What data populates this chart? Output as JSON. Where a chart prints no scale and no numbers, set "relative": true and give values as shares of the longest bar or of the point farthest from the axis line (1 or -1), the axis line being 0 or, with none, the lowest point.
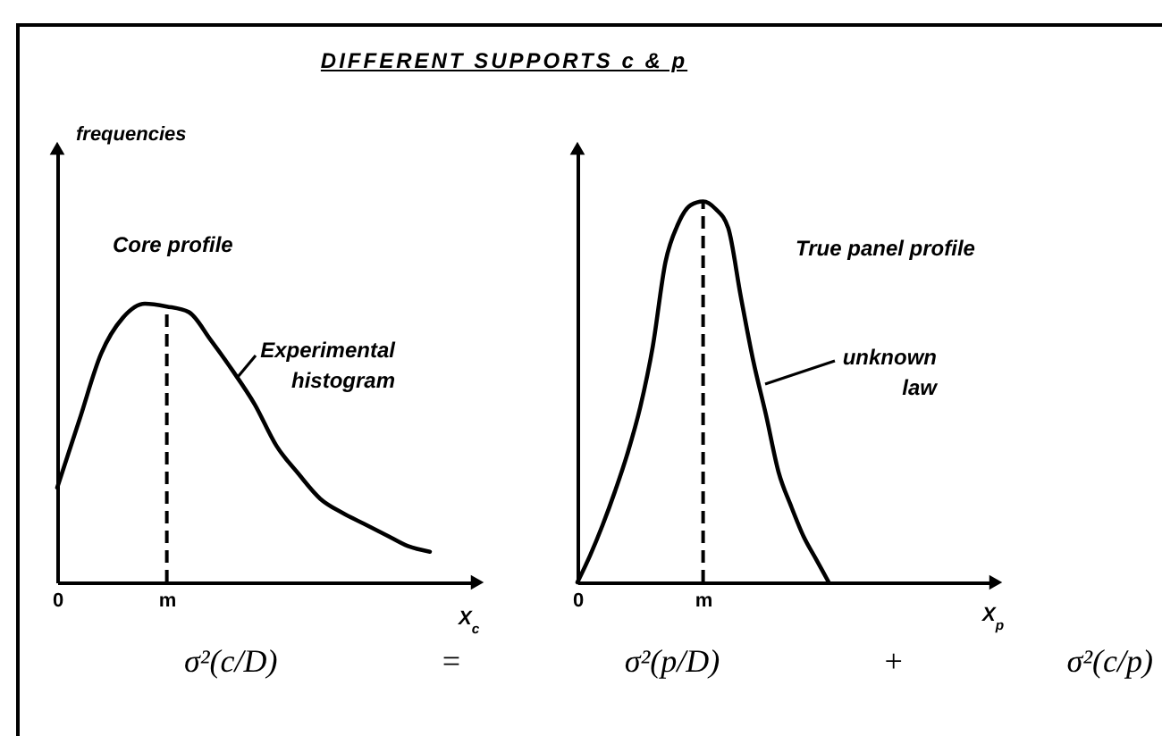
{
  "chart_data": [
    {
      "type": "line",
      "title": "DIFFERENT SUPPORTS c & p",
      "subtitle": "Core profile",
      "ylabel": "frequencies",
      "xlabel": "X$_{c}$",
      "relative": true,
      "categories": [
        "0",
        null,
        null,
        null,
        null,
        "m",
        null,
        null,
        null,
        null,
        null,
        null,
        null,
        null,
        null,
        null,
        null,
        null,
        null,
        null
      ],
      "series": [
        {
          "color": "#000000",
          "values": [
            0.34,
            0.58,
            0.82,
            0.95,
            1,
            0.99,
            0.97,
            0.87,
            0.76,
            0.64,
            0.49,
            0.39,
            0.3,
            0.25,
            0.21,
            0.17,
            0.13,
            0.11,
            null,
            null
          ]
        }
      ],
      "ref_lines": [
        {
          "axis": "x",
          "value": "m",
          "line_style": "dashed"
        }
      ],
      "annotations": [
        "Experimental histogram",
        "σ²(c/D) = σ²(p/D) + σ²(c/p)"
      ]
    },
    {
      "type": "line",
      "subtitle": "True panel profile",
      "xlabel": "X$_{p}$",
      "relative": true,
      "categories": [
        "0",
        null,
        null,
        null,
        null,
        null,
        null,
        null,
        null,
        null,
        "m",
        null,
        null,
        null,
        null,
        null,
        null,
        null,
        null,
        null,
        null,
        null,
        null,
        null,
        null,
        null,
        null,
        null,
        null,
        null,
        null,
        null,
        null,
        null
      ],
      "series": [
        {
          "color": "#000000",
          "values": [
            0,
            0.07,
            0.15,
            0.24,
            0.34,
            0.46,
            0.62,
            0.84,
            0.94,
            0.99,
            1,
            0.98,
            0.93,
            0.75,
            0.58,
            0.44,
            0.29,
            0.2,
            0.12,
            0.06,
            0,
            null,
            null,
            null,
            null,
            null,
            null,
            null,
            null,
            null,
            null,
            null,
            null,
            null
          ]
        }
      ],
      "ref_lines": [
        {
          "axis": "x",
          "value": "m",
          "line_style": "dashed"
        }
      ],
      "annotations": [
        "unknown law"
      ]
    }
  ]
}
